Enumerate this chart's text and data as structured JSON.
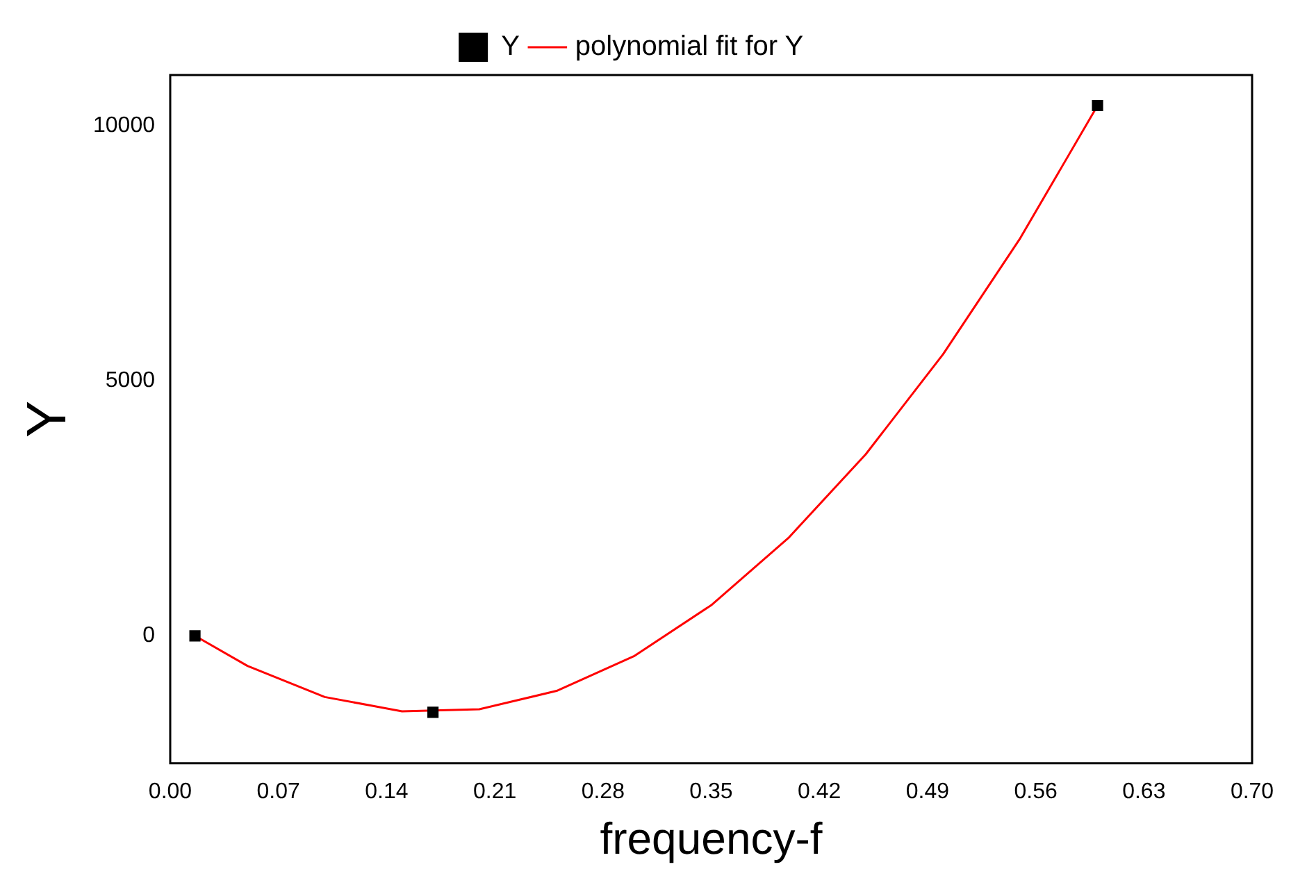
{
  "chart_data": {
    "type": "scatter",
    "xlabel": "frequency-f",
    "ylabel": "Y",
    "xlim": [
      0,
      0.7
    ],
    "ylim": [
      -2500,
      11000
    ],
    "xticks": [
      {
        "value": 0,
        "label": "0.00"
      },
      {
        "value": 0.07,
        "label": "0.07"
      },
      {
        "value": 0.14,
        "label": "0.14"
      },
      {
        "value": 0.21,
        "label": "0.21"
      },
      {
        "value": 0.28,
        "label": "0.28"
      },
      {
        "value": 0.35,
        "label": "0.35"
      },
      {
        "value": 0.42,
        "label": "0.42"
      },
      {
        "value": 0.49,
        "label": "0.49"
      },
      {
        "value": 0.56,
        "label": "0.56"
      },
      {
        "value": 0.63,
        "label": "0.63"
      },
      {
        "value": 0.7,
        "label": "0.70"
      }
    ],
    "yticks": [
      0,
      5000,
      10000
    ],
    "legend": "top",
    "grid": false,
    "series": [
      {
        "name": "Y",
        "color": "#000000",
        "marker": "square",
        "x": [
          0.016,
          0.17,
          0.6
        ],
        "values": [
          0,
          -1500,
          10400
        ]
      },
      {
        "name": "polynomial fit for Y",
        "type": "line",
        "color": "#ff0000",
        "marker": "none",
        "x": [
          0.016,
          0.05,
          0.1,
          0.15,
          0.2,
          0.25,
          0.3,
          0.35,
          0.4,
          0.45,
          0.5,
          0.55,
          0.6
        ],
        "values": [
          0,
          -590,
          -1200,
          -1480,
          -1440,
          -1080,
          -400,
          600,
          1920,
          3560,
          5520,
          7800,
          10400
        ]
      }
    ]
  }
}
